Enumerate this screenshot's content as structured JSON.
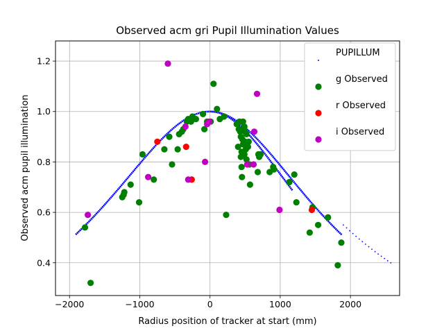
{
  "chart_data": {
    "type": "scatter",
    "title": "Observed acm gri Pupil Illumination Values",
    "xlabel": "Radius position of tracker at start (mm)",
    "ylabel": "Observed acm pupil illumination",
    "xlim": [
      -2200,
      2700
    ],
    "ylim": [
      0.27,
      1.28
    ],
    "xticks": [
      -2000,
      -1000,
      0,
      1000,
      2000
    ],
    "yticks": [
      0.4,
      0.6,
      0.8,
      1.0,
      1.2
    ],
    "grid": true,
    "legend_position": "top-right",
    "series": [
      {
        "name": "PUPILLUM",
        "color": "#0000ff",
        "marker": "small-dot",
        "curve": {
          "left_x_start": -1920,
          "left_x_end": 0,
          "right_x_start": 0,
          "right_x_end": 2600,
          "peak_y": 1.0,
          "left_end_y": 0.51,
          "right_end_y": 0.395,
          "inner_branch_right_x": 1180,
          "inner_branch_right_y": 0.685,
          "mid_branch_right_x": 1880,
          "mid_branch_right_y": 0.51
        }
      },
      {
        "name": "g Observed",
        "color": "#008000",
        "points": [
          [
            -1780,
            0.54
          ],
          [
            -1700,
            0.32
          ],
          [
            -1250,
            0.66
          ],
          [
            -1230,
            0.67
          ],
          [
            -1220,
            0.68
          ],
          [
            -1130,
            0.71
          ],
          [
            -1010,
            0.64
          ],
          [
            -960,
            0.83
          ],
          [
            -800,
            0.73
          ],
          [
            -650,
            0.85
          ],
          [
            -580,
            0.9
          ],
          [
            -540,
            0.79
          ],
          [
            -460,
            0.85
          ],
          [
            -440,
            0.91
          ],
          [
            -400,
            0.92
          ],
          [
            -380,
            0.93
          ],
          [
            -330,
            0.96
          ],
          [
            -310,
            0.97
          ],
          [
            -270,
            0.96
          ],
          [
            -250,
            0.98
          ],
          [
            -200,
            0.97
          ],
          [
            -100,
            0.99
          ],
          [
            -80,
            0.93
          ],
          [
            -40,
            0.96
          ],
          [
            10,
            0.96
          ],
          [
            50,
            1.11
          ],
          [
            100,
            1.01
          ],
          [
            140,
            0.97
          ],
          [
            200,
            0.98
          ],
          [
            230,
            0.59
          ],
          [
            380,
            0.95
          ],
          [
            400,
            0.86
          ],
          [
            410,
            0.93
          ],
          [
            420,
            0.96
          ],
          [
            430,
            0.92
          ],
          [
            440,
            0.9
          ],
          [
            440,
            0.82
          ],
          [
            450,
            0.84
          ],
          [
            450,
            0.78
          ],
          [
            455,
            0.74
          ],
          [
            460,
            0.89
          ],
          [
            470,
            0.96
          ],
          [
            470,
            0.87
          ],
          [
            480,
            0.93
          ],
          [
            490,
            0.94
          ],
          [
            490,
            0.83
          ],
          [
            500,
            0.92
          ],
          [
            500,
            0.88
          ],
          [
            510,
            0.85
          ],
          [
            520,
            0.81
          ],
          [
            520,
            0.91
          ],
          [
            540,
            0.86
          ],
          [
            550,
            0.88
          ],
          [
            560,
            0.79
          ],
          [
            570,
            0.71
          ],
          [
            680,
            0.76
          ],
          [
            690,
            0.83
          ],
          [
            700,
            0.82
          ],
          [
            720,
            0.83
          ],
          [
            850,
            0.76
          ],
          [
            900,
            0.78
          ],
          [
            910,
            0.77
          ],
          [
            1130,
            0.72
          ],
          [
            1200,
            0.75
          ],
          [
            1230,
            0.64
          ],
          [
            1420,
            0.52
          ],
          [
            1460,
            0.62
          ],
          [
            1540,
            0.55
          ],
          [
            1680,
            0.58
          ],
          [
            1820,
            0.39
          ],
          [
            1870,
            0.48
          ]
        ]
      },
      {
        "name": "r Observed",
        "color": "#ff0000",
        "points": [
          [
            -750,
            0.88
          ],
          [
            -340,
            0.86
          ],
          [
            -260,
            0.73
          ],
          [
            1450,
            0.61
          ]
        ]
      },
      {
        "name": "i Observed",
        "color": "#c000c0",
        "points": [
          [
            -1740,
            0.59
          ],
          [
            -880,
            0.74
          ],
          [
            -600,
            1.19
          ],
          [
            -350,
            0.94
          ],
          [
            -310,
            0.73
          ],
          [
            -70,
            0.8
          ],
          [
            -40,
            0.95
          ],
          [
            -10,
            0.96
          ],
          [
            530,
            0.79
          ],
          [
            620,
            0.79
          ],
          [
            630,
            0.92
          ],
          [
            670,
            1.07
          ],
          [
            990,
            0.61
          ]
        ]
      }
    ]
  }
}
